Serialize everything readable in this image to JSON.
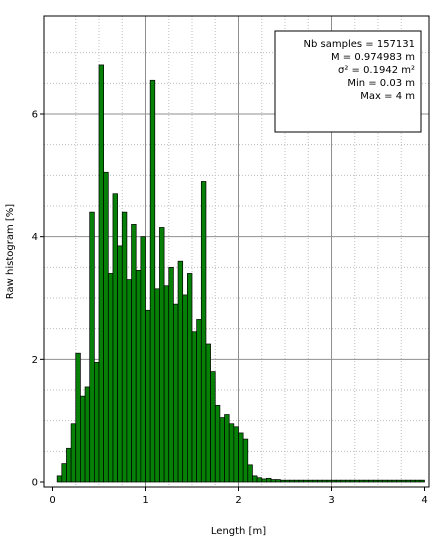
{
  "chart_data": {
    "type": "bar",
    "xlabel": "Length  [m]",
    "ylabel": "Raw histogram [%]",
    "xlim": [
      0,
      4
    ],
    "ylim": [
      0,
      7.2
    ],
    "x_ticks": [
      0,
      1,
      2,
      3,
      4
    ],
    "y_ticks": [
      0,
      2,
      4,
      6
    ],
    "bin_width": 0.05,
    "grid": true,
    "bar_color": "#068006",
    "stats": {
      "lines": [
        "Nb samples = 157131",
        "M = 0.974983 m",
        "σ² = 0.1942 m²",
        "Min = 0.03 m",
        "Max = 4 m"
      ],
      "position": "top-right"
    },
    "bins_start": [
      0.05,
      0.1,
      0.15,
      0.2,
      0.25,
      0.3,
      0.35,
      0.4,
      0.45,
      0.5,
      0.55,
      0.6,
      0.65,
      0.7,
      0.75,
      0.8,
      0.85,
      0.9,
      0.95,
      1.0,
      1.05,
      1.1,
      1.15,
      1.2,
      1.25,
      1.3,
      1.35,
      1.4,
      1.45,
      1.5,
      1.55,
      1.6,
      1.65,
      1.7,
      1.75,
      1.8,
      1.85,
      1.9,
      1.95,
      2.0,
      2.05,
      2.1,
      2.15,
      2.2,
      2.25,
      2.3,
      2.35,
      2.4,
      2.45,
      2.5,
      2.55,
      2.6,
      2.65,
      2.7,
      2.75,
      2.8,
      2.85,
      2.9,
      2.95,
      3.0,
      3.05,
      3.1,
      3.15,
      3.2,
      3.25,
      3.3,
      3.35,
      3.4,
      3.45,
      3.5,
      3.55,
      3.6,
      3.65,
      3.7,
      3.75,
      3.8,
      3.85,
      3.9,
      3.95
    ],
    "values": [
      0.1,
      0.3,
      0.55,
      0.95,
      2.1,
      1.4,
      1.55,
      4.4,
      1.95,
      6.8,
      5.05,
      3.4,
      4.7,
      3.85,
      4.4,
      3.3,
      4.2,
      3.45,
      4.0,
      2.8,
      6.55,
      3.15,
      4.15,
      3.2,
      3.5,
      2.9,
      3.6,
      3.05,
      3.4,
      2.45,
      2.65,
      4.9,
      2.25,
      1.8,
      1.25,
      1.05,
      1.1,
      0.95,
      0.9,
      0.8,
      0.7,
      0.28,
      0.1,
      0.07,
      0.05,
      0.06,
      0.04,
      0.04,
      0.03,
      0.03,
      0.03,
      0.03,
      0.03,
      0.03,
      0.03,
      0.03,
      0.03,
      0.03,
      0.03,
      0.03,
      0.03,
      0.03,
      0.03,
      0.03,
      0.03,
      0.03,
      0.03,
      0.03,
      0.03,
      0.03,
      0.03,
      0.03,
      0.03,
      0.03,
      0.03,
      0.03,
      0.03,
      0.03,
      0.03
    ]
  }
}
